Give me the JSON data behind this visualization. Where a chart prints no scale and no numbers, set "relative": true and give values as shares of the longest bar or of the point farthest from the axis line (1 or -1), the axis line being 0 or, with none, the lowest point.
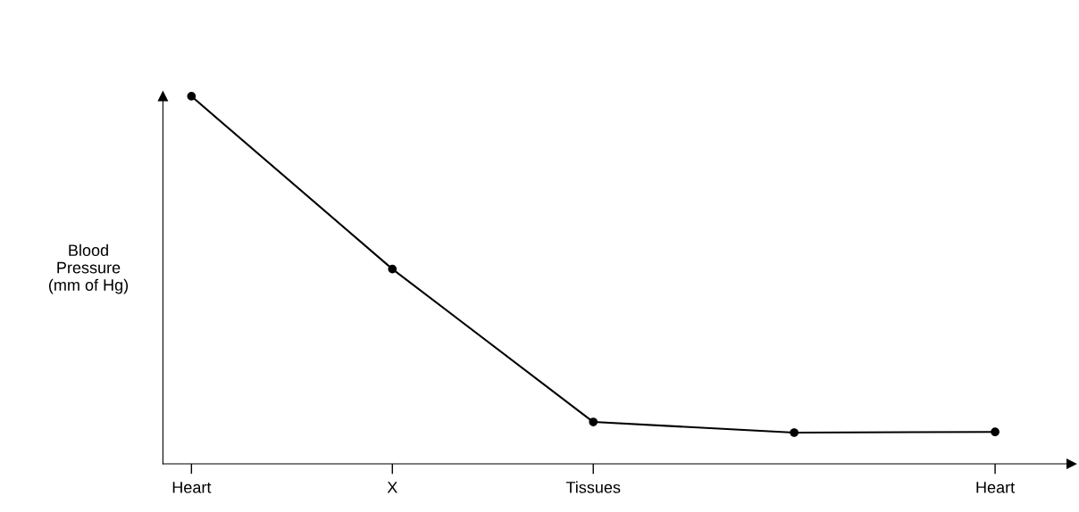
{
  "chart_data": {
    "type": "line",
    "relative": true,
    "ylabel": "Blood\nPressure\n(mm of Hg)",
    "categories": [
      "Heart",
      "X",
      "Tissues",
      null,
      "Heart"
    ],
    "series": [
      {
        "color": "#000000",
        "values": [
          1,
          0.53,
          0.114,
          0.085,
          0.087
        ]
      }
    ],
    "marker": "circle",
    "line_style": "solid",
    "grid": false,
    "legend": false
  }
}
